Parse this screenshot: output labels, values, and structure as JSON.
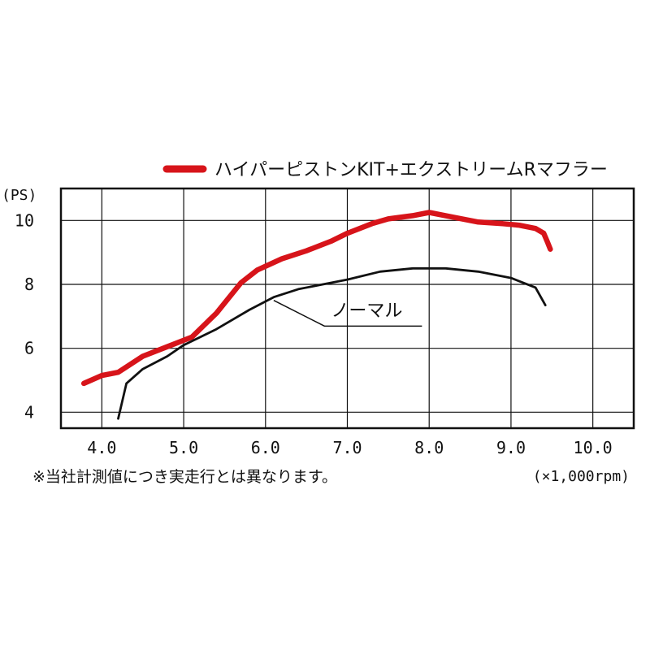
{
  "chart_data": {
    "type": "line",
    "x_unit": "(×1,000rpm)",
    "y_unit": "(PS)",
    "xlim": [
      3.5,
      10.5
    ],
    "ylim": [
      3.5,
      11
    ],
    "x_ticks": [
      4.0,
      5.0,
      6.0,
      7.0,
      8.0,
      9.0,
      10.0
    ],
    "x_tick_labels": [
      "4.0",
      "5.0",
      "6.0",
      "7.0",
      "8.0",
      "9.0",
      "10.0"
    ],
    "y_ticks": [
      4,
      6,
      8,
      10
    ],
    "y_tick_labels": [
      "4",
      "6",
      "8",
      "10"
    ],
    "grid": true,
    "legend_position": "top-right",
    "series": [
      {
        "name": "ハイパーピストンKIT+エクストリームRマフラー",
        "color": "#d7141a",
        "x": [
          3.78,
          4.0,
          4.2,
          4.5,
          4.8,
          5.1,
          5.4,
          5.7,
          5.9,
          6.2,
          6.5,
          6.8,
          7.0,
          7.3,
          7.5,
          7.8,
          8.0,
          8.3,
          8.6,
          8.9,
          9.1,
          9.3,
          9.4,
          9.45,
          9.48
        ],
        "y": [
          4.9,
          5.15,
          5.25,
          5.75,
          6.05,
          6.35,
          7.1,
          8.05,
          8.45,
          8.8,
          9.05,
          9.35,
          9.6,
          9.9,
          10.05,
          10.15,
          10.25,
          10.1,
          9.95,
          9.9,
          9.85,
          9.75,
          9.6,
          9.3,
          9.1
        ]
      },
      {
        "name": "ノーマル",
        "color": "#111111",
        "x": [
          4.2,
          4.3,
          4.5,
          4.8,
          5.0,
          5.4,
          5.8,
          6.1,
          6.4,
          6.7,
          7.0,
          7.4,
          7.8,
          8.2,
          8.6,
          9.0,
          9.3,
          9.42
        ],
        "y": [
          3.8,
          4.9,
          5.35,
          5.75,
          6.1,
          6.6,
          7.2,
          7.6,
          7.85,
          8.0,
          8.15,
          8.4,
          8.5,
          8.5,
          8.4,
          8.2,
          7.9,
          7.35
        ]
      }
    ],
    "annotations": [
      {
        "text": "ノーマル",
        "target_series": 1,
        "x": 6.8,
        "y": 7.0,
        "point_x": 6.1,
        "point_y": 7.5
      }
    ],
    "note": "※当社計測値につき実走行とは異なります。"
  }
}
